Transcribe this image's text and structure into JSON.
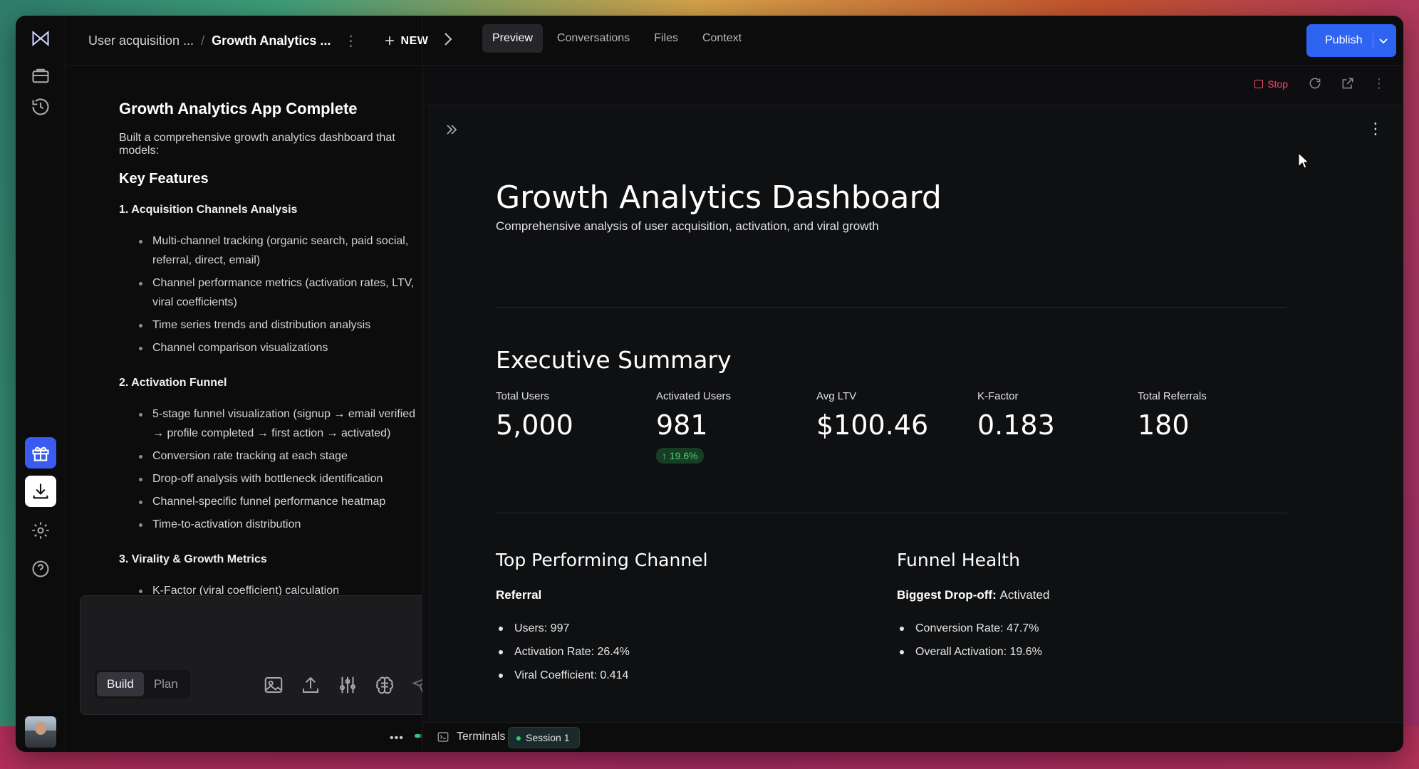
{
  "header": {
    "breadcrumb_parent": "User acquisition ...",
    "breadcrumb_current": "Growth Analytics ...",
    "new_label": "NEW",
    "tabs": [
      {
        "label": "Preview"
      },
      {
        "label": "Conversations"
      },
      {
        "label": "Files"
      },
      {
        "label": "Context"
      }
    ],
    "publish_label": "Publish"
  },
  "chat": {
    "title": "Growth Analytics App Complete",
    "intro": "Built a comprehensive growth analytics dashboard that models:",
    "key_features_heading": "Key Features",
    "sections": [
      {
        "heading": "1. Acquisition Channels Analysis",
        "items": [
          "Multi-channel tracking (organic search, paid social, referral, direct, email)",
          "Channel performance metrics (activation rates, LTV, viral coefficients)",
          "Time series trends and distribution analysis",
          "Channel comparison visualizations"
        ]
      },
      {
        "heading": "2. Activation Funnel",
        "items": [
          "5-stage funnel visualization (signup → email verified → profile completed → first action → activated)",
          "Conversion rate tracking at each stage",
          "Drop-off analysis with bottleneck identification",
          "Channel-specific funnel performance heatmap",
          "Time-to-activation distribution"
        ]
      },
      {
        "heading": "3. Virality & Growth Metrics",
        "items": [
          "K-Factor (viral coefficient) calculation"
        ]
      }
    ],
    "mode_build": "Build",
    "mode_plan": "Plan",
    "status_dots": "•••"
  },
  "preview": {
    "stop_label": "Stop",
    "dashboard_title": "Growth Analytics Dashboard",
    "dashboard_subtitle": "Comprehensive analysis of user acquisition, activation, and viral growth",
    "exec_summary_heading": "Executive Summary",
    "kpis": [
      {
        "label": "Total Users",
        "value": "5,000"
      },
      {
        "label": "Activated Users",
        "value": "981",
        "delta": "↑ 19.6%"
      },
      {
        "label": "Avg LTV",
        "value": "$100.46"
      },
      {
        "label": "K-Factor",
        "value": "0.183"
      },
      {
        "label": "Total Referrals",
        "value": "180"
      }
    ],
    "top_channel": {
      "heading": "Top Performing Channel",
      "name": "Referral",
      "items": [
        "Users: 997",
        "Activation Rate: 26.4%",
        "Viral Coefficient: 0.414"
      ]
    },
    "funnel_health": {
      "heading": "Funnel Health",
      "biggest_dropoff_label": "Biggest Drop-off:",
      "biggest_dropoff_value": "Activated",
      "items": [
        "Conversion Rate: 47.7%",
        "Overall Activation: 19.6%"
      ]
    }
  },
  "terminals": {
    "label": "Terminals",
    "session": "Session 1"
  },
  "colors": {
    "accent": "#2f64f2",
    "stop": "#ef4d6b",
    "success": "#4bd37a"
  },
  "icons": {
    "logo": "logo-icon",
    "rail": [
      "briefcase-icon",
      "history-icon",
      "gift-icon",
      "download-icon",
      "settings-icon",
      "help-icon"
    ],
    "composer": [
      "image-icon",
      "upload-icon",
      "sliders-icon",
      "brain-icon",
      "send-icon"
    ]
  }
}
